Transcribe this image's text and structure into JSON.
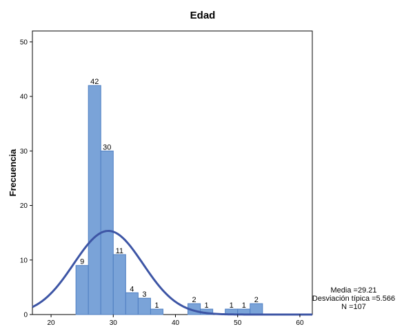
{
  "chart_data": {
    "type": "bar",
    "title": "Edad",
    "xlabel": "",
    "ylabel": "Frecuencia",
    "xlim": [
      17,
      62
    ],
    "ylim": [
      0,
      52
    ],
    "x_ticks": [
      20,
      30,
      40,
      50,
      60
    ],
    "y_ticks": [
      0,
      10,
      20,
      30,
      40,
      50
    ],
    "bins": [
      {
        "start": 24,
        "end": 26,
        "value": 9
      },
      {
        "start": 26,
        "end": 28,
        "value": 42
      },
      {
        "start": 28,
        "end": 30,
        "value": 30
      },
      {
        "start": 30,
        "end": 32,
        "value": 11
      },
      {
        "start": 32,
        "end": 34,
        "value": 4
      },
      {
        "start": 34,
        "end": 36,
        "value": 3
      },
      {
        "start": 36,
        "end": 38,
        "value": 1
      },
      {
        "start": 42,
        "end": 44,
        "value": 2
      },
      {
        "start": 44,
        "end": 46,
        "value": 1
      },
      {
        "start": 48,
        "end": 50,
        "value": 1
      },
      {
        "start": 50,
        "end": 52,
        "value": 1
      },
      {
        "start": 52,
        "end": 54,
        "value": 2
      }
    ],
    "normal_curve": {
      "mean": 29.21,
      "sd": 5.566,
      "n": 107,
      "bin_width": 2
    },
    "grid": false,
    "legend": "none",
    "bar_color": "#7aa3d8",
    "bar_edge_color": "#4f7fc2",
    "curve_color": "#3d55a5"
  },
  "stats": {
    "mean_label": "Media =29.21",
    "sd_label": "Desviación típica =5.566",
    "n_label": "N =107"
  }
}
